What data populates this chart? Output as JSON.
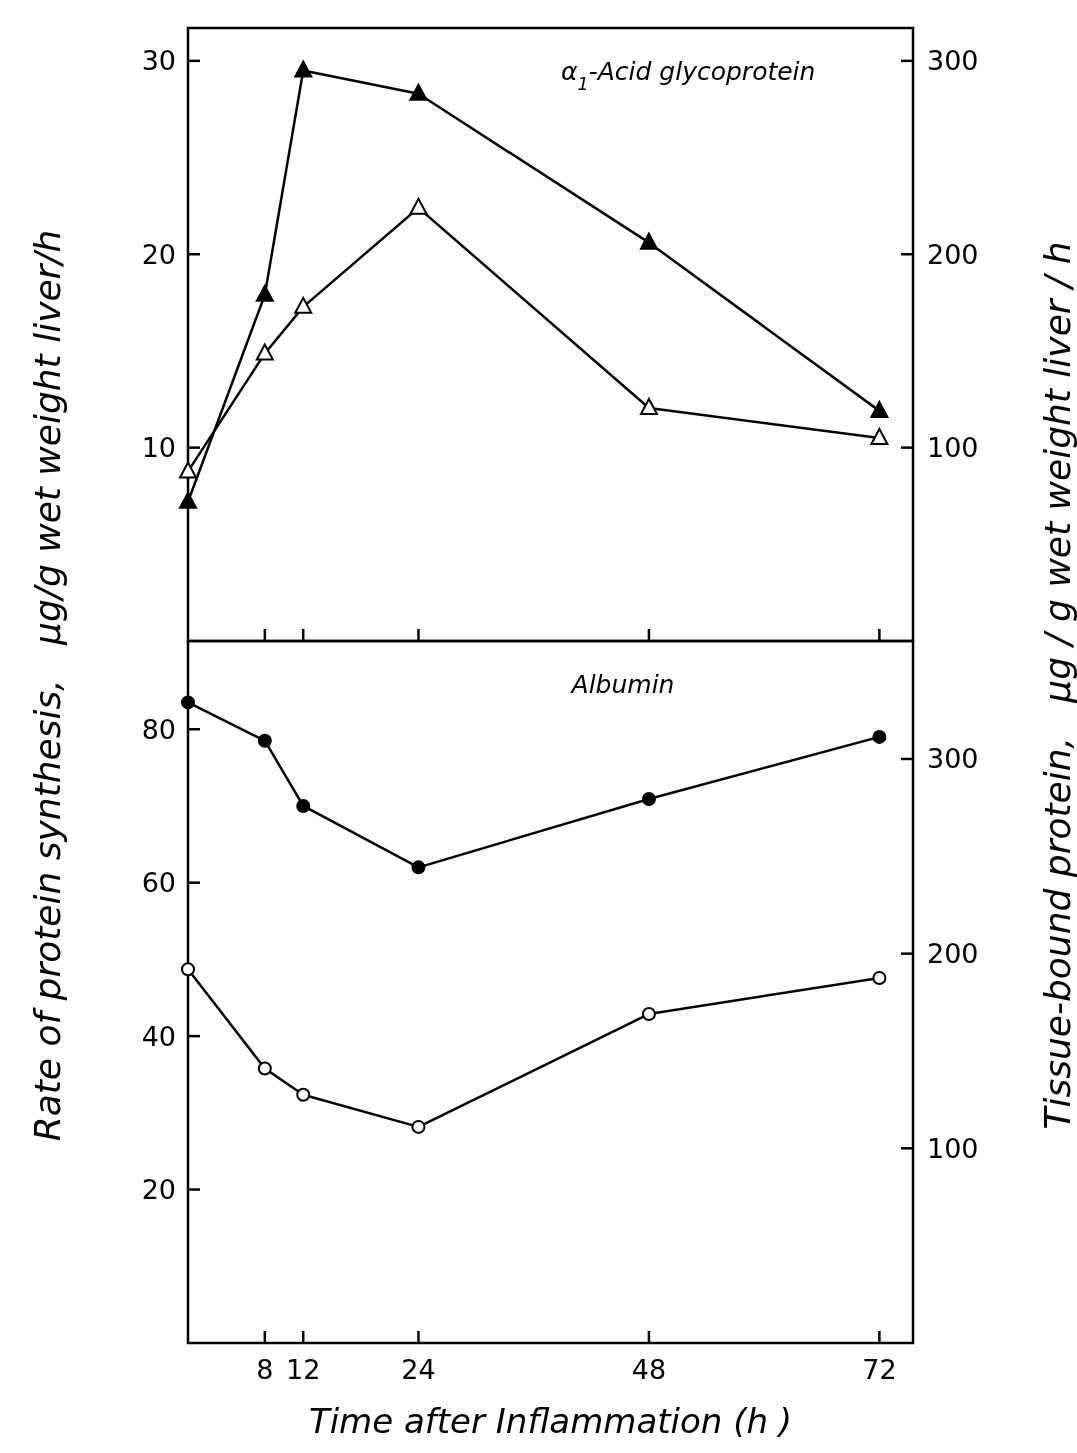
{
  "chart_data": [
    {
      "type": "line",
      "title": "α$_{1}$-Acid glycoprotein",
      "ylabel": "Rate of protein synthesis,   µg/g wet weight liver/h",
      "y2label": "Tissue-bound protein,   µg / g wet weight liver / h",
      "x": [
        0,
        8,
        12,
        24,
        48,
        72
      ],
      "xlim": [
        0,
        75.5
      ],
      "xticks": [
        8,
        12,
        24,
        48,
        72
      ],
      "ylim": [
        0,
        31.7
      ],
      "yticks": [
        10,
        20,
        30
      ],
      "y2lim": [
        0,
        317
      ],
      "y2ticks": [
        100,
        200,
        300
      ],
      "tick_labels": "y",
      "marker": "triangle",
      "grid": false,
      "series": [
        {
          "color": "#000000",
          "values": [
            7.2,
            17.9,
            29.5,
            28.3,
            20.6,
            11.9
          ]
        },
        {
          "color": "#000000",
          "axis": "y2",
          "values": [
            87.7,
            148.7,
            172.8,
            224,
            120.5,
            105
          ]
        }
      ]
    },
    {
      "type": "line",
      "title": "Albumin",
      "xlabel": "Time  after  Inflammation (h )",
      "x": [
        0,
        8,
        12,
        24,
        48,
        72
      ],
      "xlim": [
        0,
        75.5
      ],
      "xticks": [
        8,
        12,
        24,
        48,
        72
      ],
      "ylim": [
        0,
        91.5
      ],
      "yticks": [
        20,
        40,
        60,
        80
      ],
      "y2lim": [
        0,
        360.6
      ],
      "y2ticks": [
        100,
        200,
        300
      ],
      "marker": "circle",
      "grid": false,
      "series": [
        {
          "color": "#000000",
          "values": [
            83.5,
            78.5,
            70,
            62,
            70.9,
            79
          ]
        },
        {
          "color": "#000000",
          "axis": "y2",
          "values": [
            192,
            141,
            127.5,
            111,
            169,
            187.5
          ]
        }
      ]
    }
  ]
}
